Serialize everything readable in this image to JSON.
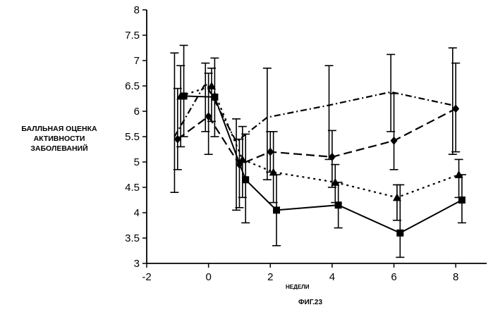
{
  "chart_data": {
    "type": "line",
    "title": "",
    "caption": "ФИГ.23",
    "xlabel": "НЕДЕЛИ",
    "ylabel_lines": [
      "БАЛЛЬНАЯ ОЦЕНКА",
      "АКТИВНОСТИ",
      "ЗАБОЛЕВАНИЙ"
    ],
    "xlim": [
      -2,
      9
    ],
    "ylim": [
      3,
      8
    ],
    "x_ticks": [
      "-2",
      "0",
      "2",
      "4",
      "6",
      "8"
    ],
    "y_ticks": [
      "3",
      "3.5",
      "4",
      "4.5",
      "5",
      "5.5",
      "6",
      "6.5",
      "7",
      "7.5",
      "8"
    ],
    "grid": false,
    "series": [
      {
        "marker": "square",
        "dash": "solid",
        "points": [
          {
            "x": -0.8,
            "y": 6.3,
            "lo": 5.5,
            "hi": 7.3
          },
          {
            "x": 0.2,
            "y": 6.28,
            "lo": 5.5,
            "hi": 7.05
          },
          {
            "x": 1.2,
            "y": 4.65,
            "lo": 3.8,
            "hi": 5.55
          },
          {
            "x": 2.2,
            "y": 4.05,
            "lo": 3.35,
            "hi": 4.75
          },
          {
            "x": 4.2,
            "y": 4.15,
            "lo": 3.7,
            "hi": 4.6
          },
          {
            "x": 6.2,
            "y": 3.6,
            "lo": 3.12,
            "hi": 4.55
          },
          {
            "x": 8.2,
            "y": 4.25,
            "lo": 3.8,
            "hi": 4.75
          }
        ]
      },
      {
        "marker": "triangle",
        "dash": "dotted",
        "points": [
          {
            "x": -0.9,
            "y": 6.3,
            "lo": 5.3,
            "hi": 6.9
          },
          {
            "x": 0.1,
            "y": 6.5,
            "lo": 5.8,
            "hi": 6.85
          },
          {
            "x": 1.1,
            "y": 5.05,
            "lo": 4.3,
            "hi": 5.7
          },
          {
            "x": 2.1,
            "y": 4.8,
            "lo": 4.2,
            "hi": 5.6
          },
          {
            "x": 4.1,
            "y": 4.6,
            "lo": 4.2,
            "hi": 4.95
          },
          {
            "x": 6.1,
            "y": 4.3,
            "lo": 3.85,
            "hi": 4.55
          },
          {
            "x": 8.1,
            "y": 4.75,
            "lo": 4.3,
            "hi": 5.05
          }
        ]
      },
      {
        "marker": "diamond",
        "dash": "dash",
        "points": [
          {
            "x": -1.0,
            "y": 5.45,
            "lo": 4.85,
            "hi": 6.45
          },
          {
            "x": 0.0,
            "y": 5.9,
            "lo": 5.15,
            "hi": 6.75
          },
          {
            "x": 1.0,
            "y": 4.95,
            "lo": 4.1,
            "hi": 5.45
          },
          {
            "x": 2.0,
            "y": 5.2,
            "lo": 4.8,
            "hi": 5.6
          },
          {
            "x": 4.0,
            "y": 5.1,
            "lo": 4.5,
            "hi": 5.62
          },
          {
            "x": 6.0,
            "y": 5.42,
            "lo": 4.85,
            "hi": 6.35
          },
          {
            "x": 8.0,
            "y": 6.05,
            "lo": 5.2,
            "hi": 6.95
          }
        ]
      },
      {
        "marker": "none",
        "dash": "dash-dot",
        "points": [
          {
            "x": -1.1,
            "y": 5.5,
            "lo": 4.4,
            "hi": 7.15
          },
          {
            "x": -0.1,
            "y": 6.55,
            "lo": 5.6,
            "hi": 6.95
          },
          {
            "x": 0.9,
            "y": 5.4,
            "lo": 4.05,
            "hi": 5.85
          },
          {
            "x": 1.9,
            "y": 5.88,
            "lo": 4.65,
            "hi": 6.85
          },
          {
            "x": 3.9,
            "y": 6.12,
            "lo": 5.05,
            "hi": 6.9
          },
          {
            "x": 5.9,
            "y": 6.38,
            "lo": 5.6,
            "hi": 7.12
          },
          {
            "x": 7.9,
            "y": 6.12,
            "lo": 5.15,
            "hi": 7.25
          }
        ]
      }
    ]
  }
}
